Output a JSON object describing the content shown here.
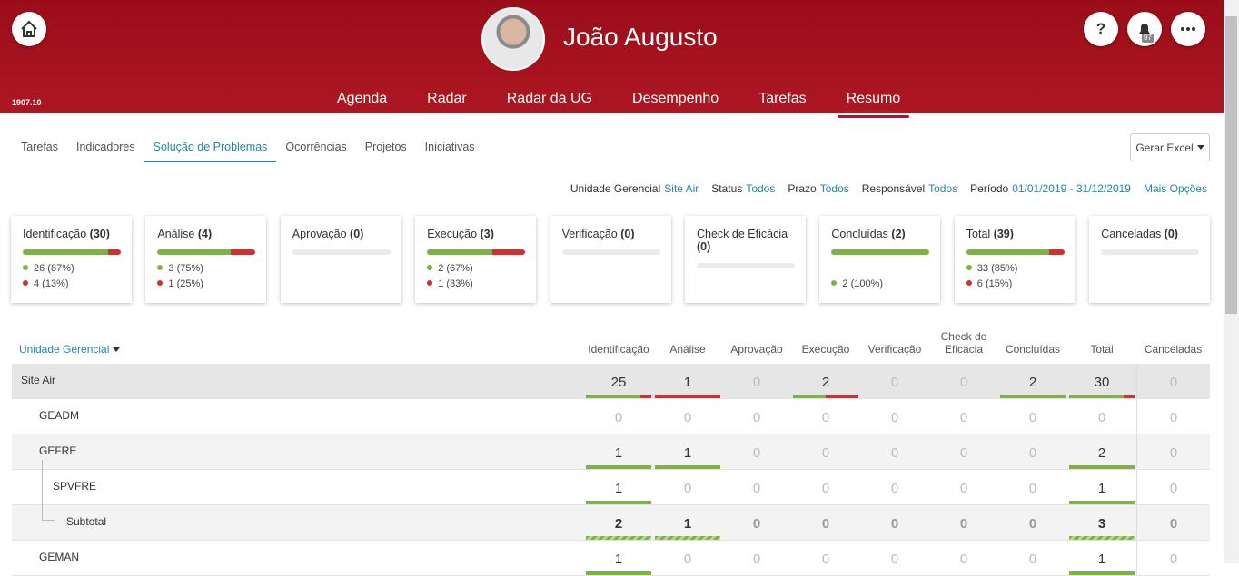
{
  "header": {
    "version": "1907.10",
    "user_name": "João Augusto",
    "help": "?",
    "notification_count": "97",
    "nav": [
      "Agenda",
      "Radar",
      "Radar da UG",
      "Desempenho",
      "Tarefas",
      "Resumo"
    ]
  },
  "tabs": {
    "items": [
      "Tarefas",
      "Indicadores",
      "Solução de Problemas",
      "Ocorrências",
      "Projetos",
      "Iniciativas"
    ],
    "button": "Gerar Excel"
  },
  "filters": {
    "items": [
      {
        "label": "Unidade Gerencial",
        "value": "Site Air"
      },
      {
        "label": "Status",
        "value": "Todos"
      },
      {
        "label": "Prazo",
        "value": "Todos"
      },
      {
        "label": "Responsável",
        "value": "Todos"
      },
      {
        "label": "Período",
        "value": "01/01/2019 - 31/12/2019"
      }
    ],
    "more": "Mais Opções"
  },
  "cards": [
    {
      "title": "Identificação",
      "count": "(30)",
      "on_time": {
        "value": 26,
        "label": "26 (87%)"
      },
      "late": {
        "value": 4,
        "label": "4 (13%)"
      }
    },
    {
      "title": "Análise",
      "count": "(4)",
      "on_time": {
        "value": 3,
        "label": "3 (75%)"
      },
      "late": {
        "value": 1,
        "label": "1 (25%)"
      }
    },
    {
      "title": "Aprovação",
      "count": "(0)"
    },
    {
      "title": "Execução",
      "count": "(3)",
      "on_time": {
        "value": 2,
        "label": "2 (67%)"
      },
      "late": {
        "value": 1,
        "label": "1 (33%)"
      }
    },
    {
      "title": "Verificação",
      "count": "(0)"
    },
    {
      "title": "Check de Eficácia",
      "count": "(0)"
    },
    {
      "title": "Concluídas",
      "count": "(2)",
      "on_time": {
        "value": 2,
        "label": "2 (100%)"
      }
    },
    {
      "title": "Total",
      "count": "(39)",
      "on_time": {
        "value": 33,
        "label": "33 (85%)"
      },
      "late": {
        "value": 6,
        "label": "6 (15%)"
      }
    },
    {
      "title": "Canceladas",
      "count": "(0)"
    }
  ],
  "table": {
    "first_column": "Unidade Gerencial",
    "columns": [
      "Identificação",
      "Análise",
      "Aprovação",
      "Execução",
      "Verificação",
      "Check de Eficácia",
      "Concluídas",
      "Total",
      "Canceladas"
    ],
    "rows": [
      {
        "name": "Site Air",
        "level": 0,
        "values": [
          25,
          1,
          0,
          2,
          0,
          0,
          2,
          30,
          0
        ],
        "late": [
          4,
          1,
          0,
          1,
          0,
          0,
          0,
          5,
          0
        ]
      },
      {
        "name": "GEADM",
        "level": 1,
        "values": [
          0,
          0,
          0,
          0,
          0,
          0,
          0,
          0,
          0
        ],
        "late": [
          0,
          0,
          0,
          0,
          0,
          0,
          0,
          0,
          0
        ]
      },
      {
        "name": "GEFRE",
        "level": 1,
        "values": [
          1,
          1,
          0,
          0,
          0,
          0,
          0,
          2,
          0
        ],
        "late": [
          0,
          0,
          0,
          0,
          0,
          0,
          0,
          0,
          0
        ]
      },
      {
        "name": "SPVFRE",
        "level": 2,
        "values": [
          1,
          0,
          0,
          0,
          0,
          0,
          0,
          1,
          0
        ],
        "late": [
          0,
          0,
          0,
          0,
          0,
          0,
          0,
          0,
          0
        ]
      },
      {
        "name": "Subtotal",
        "level": 3,
        "values": [
          2,
          1,
          0,
          0,
          0,
          0,
          0,
          3,
          0
        ],
        "late": [
          0,
          0,
          0,
          0,
          0,
          0,
          0,
          0,
          0
        ]
      },
      {
        "name": "GEMAN",
        "level": 1,
        "values": [
          1,
          0,
          0,
          0,
          0,
          0,
          0,
          1,
          0
        ],
        "late": [
          0,
          0,
          0,
          0,
          0,
          0,
          0,
          0,
          0
        ]
      }
    ]
  }
}
